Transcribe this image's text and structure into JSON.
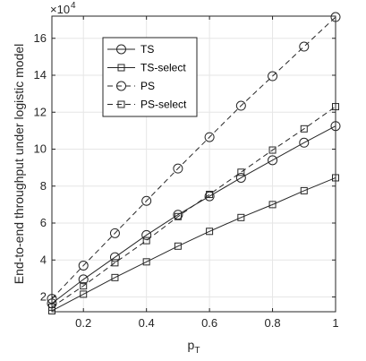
{
  "chart_data": {
    "type": "line",
    "xlabel": "p",
    "xlabel_subscript": "T",
    "ylabel": "End-to-end throughput under logistic model",
    "y_exponent_label": "×10",
    "y_exponent_power": "4",
    "x": [
      0.1,
      0.2,
      0.3,
      0.4,
      0.5,
      0.6,
      0.7,
      0.8,
      0.9,
      1.0
    ],
    "xlim": [
      0.1,
      1.0
    ],
    "ylim": [
      1.2,
      17.2
    ],
    "x_ticks": [
      0.2,
      0.4,
      0.6,
      0.8,
      1.0
    ],
    "x_tick_labels": [
      "0.2",
      "0.4",
      "0.6",
      "0.8",
      "1"
    ],
    "y_ticks": [
      2,
      4,
      6,
      8,
      10,
      12,
      14,
      16
    ],
    "y_tick_labels": [
      "2",
      "4",
      "6",
      "8",
      "10",
      "12",
      "14",
      "16"
    ],
    "grid": true,
    "legend_placement": "top-left",
    "y_scale_factor": 10000,
    "series": [
      {
        "name": "TS",
        "marker": "circle",
        "dash": "solid",
        "values": [
          1.65,
          2.95,
          4.15,
          5.35,
          6.45,
          7.45,
          8.45,
          9.4,
          10.35,
          11.25
        ]
      },
      {
        "name": "TS-select",
        "marker": "square",
        "dash": "solid",
        "values": [
          1.25,
          2.15,
          3.05,
          3.9,
          4.75,
          5.55,
          6.3,
          7.0,
          7.75,
          8.45
        ]
      },
      {
        "name": "PS",
        "marker": "circle",
        "dash": "dashed",
        "values": [
          1.9,
          3.7,
          5.45,
          7.2,
          8.95,
          10.65,
          12.35,
          13.95,
          15.55,
          17.15
        ]
      },
      {
        "name": "PS-select",
        "marker": "square",
        "dash": "dashed",
        "values": [
          1.45,
          2.6,
          3.85,
          5.05,
          6.35,
          7.55,
          8.75,
          9.95,
          11.1,
          12.3
        ]
      }
    ]
  }
}
